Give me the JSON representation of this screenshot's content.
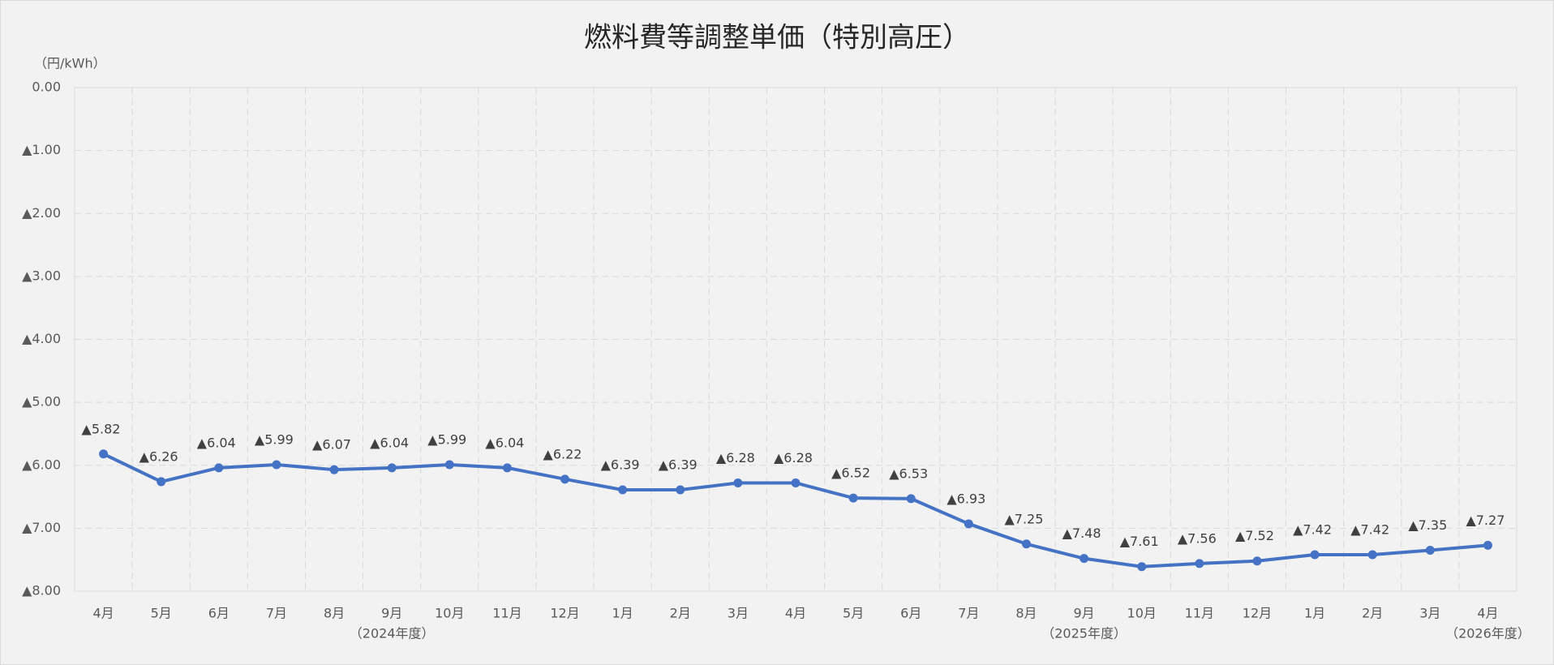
{
  "chart_data": {
    "type": "line",
    "title": "燃料費等調整単価（特別高圧）",
    "y_label": "（円/kWh）",
    "categories": [
      "4月",
      "5月",
      "6月",
      "7月",
      "8月",
      "9月",
      "10月",
      "11月",
      "12月",
      "1月",
      "2月",
      "3月",
      "4月",
      "5月",
      "6月",
      "7月",
      "8月",
      "9月",
      "10月",
      "11月",
      "12月",
      "1月",
      "2月",
      "3月",
      "4月"
    ],
    "x_group_labels": [
      null,
      null,
      null,
      null,
      null,
      "（2024年度）",
      null,
      null,
      null,
      null,
      null,
      null,
      null,
      null,
      null,
      null,
      null,
      "（2025年度）",
      null,
      null,
      null,
      null,
      null,
      null,
      "（2026年度）"
    ],
    "series": [
      {
        "name": "燃料費等調整単価",
        "color": "#4472c4",
        "values": [
          -5.82,
          -6.26,
          -6.04,
          -5.99,
          -6.07,
          -6.04,
          -5.99,
          -6.04,
          -6.22,
          -6.39,
          -6.39,
          -6.28,
          -6.28,
          -6.52,
          -6.53,
          -6.93,
          -7.25,
          -7.48,
          -7.61,
          -7.56,
          -7.52,
          -7.42,
          -7.42,
          -7.35,
          -7.27
        ],
        "value_labels": [
          "▲5.82",
          "▲6.26",
          "▲6.04",
          "▲5.99",
          "▲6.07",
          "▲6.04",
          "▲5.99",
          "▲6.04",
          "▲6.22",
          "▲6.39",
          "▲6.39",
          "▲6.28",
          "▲6.28",
          "▲6.52",
          "▲6.53",
          "▲6.93",
          "▲7.25",
          "▲7.48",
          "▲7.61",
          "▲7.56",
          "▲7.52",
          "▲7.42",
          "▲7.42",
          "▲7.35",
          "▲7.27"
        ]
      }
    ],
    "ylim": [
      -8,
      0
    ],
    "yticks": [
      {
        "value": 0,
        "label": "0.00"
      },
      {
        "value": -1,
        "label": "▲1.00"
      },
      {
        "value": -2,
        "label": "▲2.00"
      },
      {
        "value": -3,
        "label": "▲3.00"
      },
      {
        "value": -4,
        "label": "▲4.00"
      },
      {
        "value": -5,
        "label": "▲5.00"
      },
      {
        "value": -6,
        "label": "▲6.00"
      },
      {
        "value": -7,
        "label": "▲7.00"
      },
      {
        "value": -8,
        "label": "▲8.00"
      }
    ],
    "grid": true
  }
}
